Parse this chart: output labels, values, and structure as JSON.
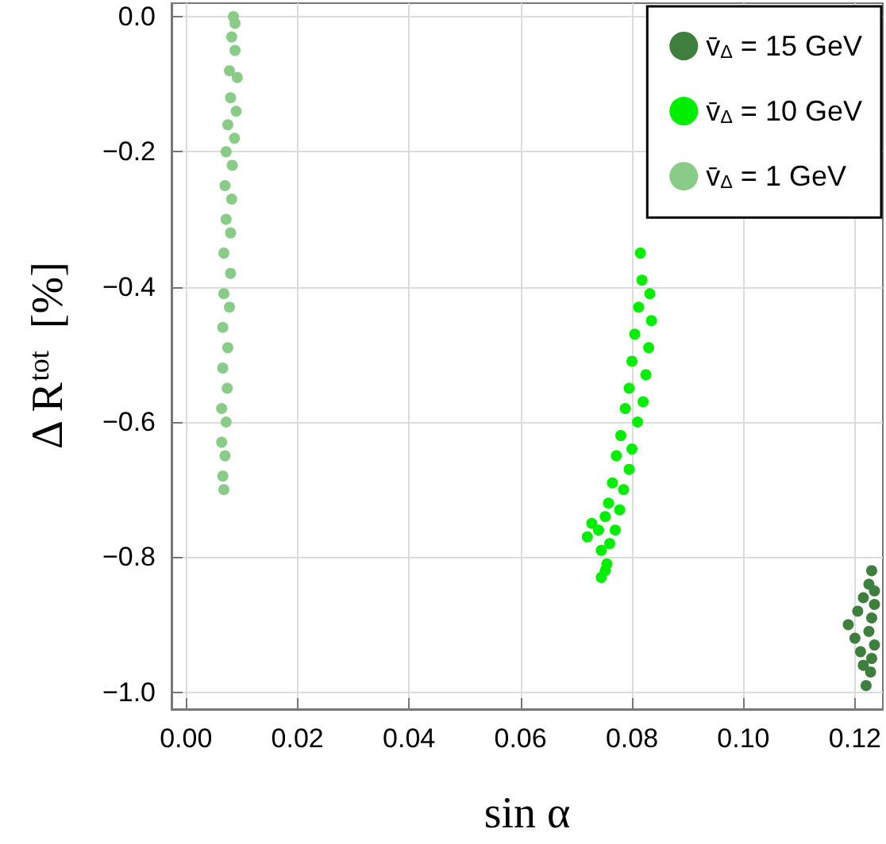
{
  "chart_data": {
    "type": "scatter",
    "xlabel": "sin α",
    "ylabel": "Δ R$^{tot}$  [%]",
    "xlim": [
      -0.0026,
      0.125
    ],
    "ylim": [
      -1.025,
      0.02
    ],
    "xticks": [
      {
        "value": 0,
        "label": "0.00"
      },
      {
        "value": 0.02,
        "label": "0.02"
      },
      {
        "value": 0.04,
        "label": "0.04"
      },
      {
        "value": 0.06,
        "label": "0.06"
      },
      {
        "value": 0.08,
        "label": "0.08"
      },
      {
        "value": 0.1,
        "label": "0.10"
      },
      {
        "value": 0.12,
        "label": "0.12"
      }
    ],
    "yticks": [
      {
        "value": -1,
        "label": "−1.0"
      },
      {
        "value": -0.8,
        "label": "−0.8"
      },
      {
        "value": -0.6,
        "label": "−0.6"
      },
      {
        "value": -0.4,
        "label": "−0.4"
      },
      {
        "value": -0.2,
        "label": "−0.2"
      },
      {
        "value": 0,
        "label": "0.0"
      }
    ],
    "grid": true,
    "legend": "top right",
    "marker": "circle",
    "series": [
      {
        "name": "v̄$_{Δ}$ = 15 GeV",
        "color": "#3e7f3e",
        "x": [
          0.123,
          0.1225,
          0.1235,
          0.1215,
          0.1235,
          0.1205,
          0.123,
          0.1188,
          0.1225,
          0.12,
          0.1235,
          0.121,
          0.123,
          0.1215,
          0.1228,
          0.122
        ],
        "values": [
          -0.82,
          -0.84,
          -0.85,
          -0.86,
          -0.87,
          -0.88,
          -0.89,
          -0.9,
          -0.91,
          -0.92,
          -0.93,
          -0.94,
          -0.95,
          -0.96,
          -0.97,
          -0.99
        ]
      },
      {
        "name": "v̄$_{Δ}$ = 10 GeV",
        "color": "#00ee00",
        "x": [
          0.0815,
          0.0818,
          0.0832,
          0.0812,
          0.0835,
          0.0805,
          0.083,
          0.08,
          0.0825,
          0.0795,
          0.082,
          0.0788,
          0.081,
          0.078,
          0.08,
          0.0772,
          0.0795,
          0.0765,
          0.0785,
          0.0758,
          0.0778,
          0.0752,
          0.077,
          0.074,
          0.076,
          0.0745,
          0.0755,
          0.0745,
          0.0752,
          0.072,
          0.0728
        ],
        "values": [
          -0.35,
          -0.39,
          -0.41,
          -0.43,
          -0.45,
          -0.47,
          -0.49,
          -0.51,
          -0.53,
          -0.55,
          -0.57,
          -0.58,
          -0.6,
          -0.62,
          -0.64,
          -0.65,
          -0.67,
          -0.69,
          -0.7,
          -0.72,
          -0.73,
          -0.74,
          -0.76,
          -0.76,
          -0.78,
          -0.79,
          -0.81,
          -0.83,
          -0.82,
          -0.77,
          -0.75
        ]
      },
      {
        "name": "v̄$_{Δ}$ = 1 GeV",
        "color": "#88cc88",
        "x": [
          0.0085,
          0.0088,
          0.0082,
          0.0088,
          0.0078,
          0.0092,
          0.008,
          0.009,
          0.0075,
          0.0087,
          0.0072,
          0.0083,
          0.007,
          0.0082,
          0.0072,
          0.008,
          0.0068,
          0.008,
          0.0068,
          0.0078,
          0.0066,
          0.0075,
          0.0066,
          0.0074,
          0.0064,
          0.0072,
          0.0064,
          0.007,
          0.0066,
          0.0068
        ],
        "values": [
          0,
          -0.01,
          -0.03,
          -0.05,
          -0.08,
          -0.09,
          -0.12,
          -0.14,
          -0.16,
          -0.18,
          -0.2,
          -0.22,
          -0.25,
          -0.27,
          -0.3,
          -0.32,
          -0.35,
          -0.38,
          -0.41,
          -0.43,
          -0.46,
          -0.49,
          -0.52,
          -0.55,
          -0.58,
          -0.6,
          -0.63,
          -0.65,
          -0.68,
          -0.7
        ]
      }
    ]
  }
}
